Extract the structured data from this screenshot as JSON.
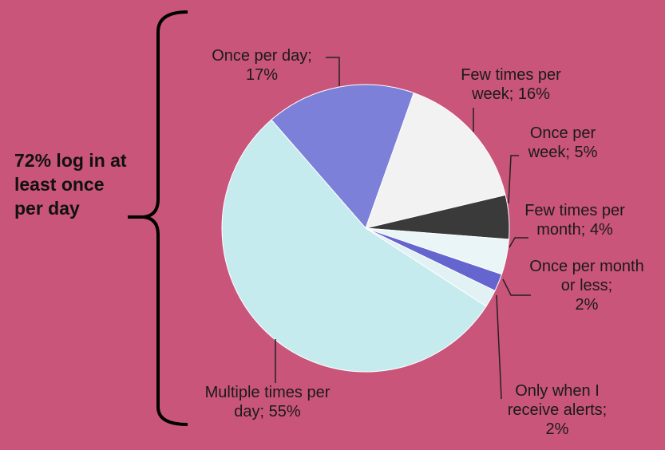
{
  "chart_data": {
    "type": "pie",
    "categories": [
      "Once per day;",
      "Few times per week;",
      "Once per week;",
      "Few times per month;",
      "Once per month or less;",
      "Only when I receive alerts;",
      "Multiple times per day;"
    ],
    "values": [
      17,
      16,
      5,
      4,
      2,
      2,
      55
    ],
    "value_labels": [
      "17%",
      "16%",
      "5%",
      "4%",
      "2%",
      "2%",
      "55%"
    ],
    "colors": [
      "#7c80d8",
      "#f2f2f2",
      "#3a3a3a",
      "#eaf5f8",
      "#6565cf",
      "#e2f1f4",
      "#c6ebef"
    ],
    "annotation": "72% log in at least once per day"
  }
}
